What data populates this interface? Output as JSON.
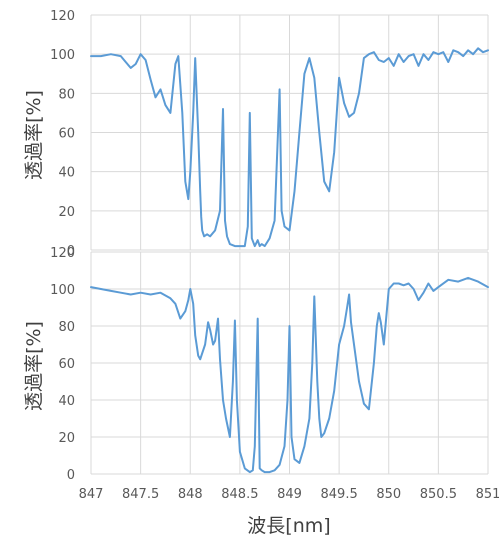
{
  "colors": {
    "series": "#5B9BD5",
    "grid": "#d9d9d9",
    "text": "#595959"
  },
  "chart_data": [
    {
      "type": "line",
      "xlabel": "",
      "ylabel": "透過率[%]",
      "ylim": [
        0,
        120
      ],
      "yticks": [
        "120",
        "100",
        "80",
        "60",
        "40",
        "20",
        "0"
      ],
      "xlim": [
        847,
        851
      ],
      "grid": "vertical and horizontal",
      "series": [
        {
          "x": [
            847.0,
            847.1,
            847.2,
            847.3,
            847.35,
            847.4,
            847.45,
            847.5,
            847.55,
            847.6,
            847.65,
            847.7,
            847.75,
            847.8,
            847.85,
            847.88,
            847.92,
            847.95,
            847.98,
            848.0,
            848.03,
            848.05,
            848.08,
            848.1,
            848.11,
            848.12,
            848.14,
            848.17,
            848.2,
            848.25,
            848.3,
            848.33,
            848.35,
            848.37,
            848.4,
            848.45,
            848.5,
            848.55,
            848.58,
            848.6,
            848.62,
            848.65,
            848.68,
            848.7,
            848.72,
            848.75,
            848.8,
            848.85,
            848.88,
            848.9,
            848.92,
            848.95,
            849.0,
            849.05,
            849.1,
            849.15,
            849.2,
            849.25,
            849.3,
            849.35,
            849.4,
            849.45,
            849.5,
            849.55,
            849.6,
            849.65,
            849.7,
            849.75,
            849.8,
            849.85,
            849.9,
            849.95,
            850.0,
            850.05,
            850.1,
            850.15,
            850.2,
            850.25,
            850.3,
            850.35,
            850.4,
            850.45,
            850.5,
            850.55,
            850.6,
            850.65,
            850.7,
            850.75,
            850.8,
            850.85,
            850.9,
            850.95,
            851.0
          ],
          "y": [
            99,
            99,
            100,
            99,
            96,
            93,
            95,
            100,
            97,
            87,
            78,
            82,
            74,
            70,
            95,
            99,
            70,
            35,
            26,
            40,
            70,
            98,
            60,
            30,
            17,
            10,
            7,
            8,
            7,
            10,
            20,
            72,
            15,
            7,
            3,
            2,
            2,
            2,
            12,
            70,
            6,
            2,
            5,
            2,
            3,
            2,
            6,
            15,
            55,
            82,
            20,
            12,
            10,
            30,
            60,
            90,
            98,
            88,
            60,
            35,
            30,
            50,
            88,
            75,
            68,
            70,
            80,
            98,
            100,
            101,
            97,
            96,
            98,
            94,
            100,
            96,
            99,
            100,
            94,
            100,
            97,
            101,
            100,
            101,
            96,
            102,
            101,
            99,
            102,
            100,
            103,
            101,
            102
          ]
        }
      ]
    },
    {
      "type": "line",
      "xlabel": "波長[nm]",
      "ylabel": "透過率[%]",
      "ylim": [
        0,
        120
      ],
      "yticks": [
        "120",
        "100",
        "80",
        "60",
        "40",
        "20",
        "0"
      ],
      "xlim": [
        847,
        851
      ],
      "xticks": [
        "847",
        "847.5",
        "848",
        "848.5",
        "849",
        "849.5",
        "850",
        "850.5",
        "851"
      ],
      "grid": "vertical and horizontal",
      "series": [
        {
          "x": [
            847.0,
            847.1,
            847.2,
            847.3,
            847.4,
            847.5,
            847.6,
            847.7,
            847.8,
            847.85,
            847.9,
            847.95,
            847.98,
            848.0,
            848.03,
            848.05,
            848.08,
            848.1,
            848.15,
            848.18,
            848.2,
            848.23,
            848.25,
            848.28,
            848.3,
            848.33,
            848.36,
            848.4,
            848.43,
            848.45,
            848.47,
            848.5,
            848.55,
            848.6,
            848.63,
            848.65,
            848.68,
            848.7,
            848.72,
            848.75,
            848.8,
            848.85,
            848.9,
            848.95,
            848.98,
            849.0,
            849.02,
            849.05,
            849.1,
            849.15,
            849.2,
            849.23,
            849.25,
            849.28,
            849.3,
            849.32,
            849.35,
            849.4,
            849.45,
            849.5,
            849.55,
            849.58,
            849.6,
            849.62,
            849.65,
            849.7,
            849.75,
            849.8,
            849.85,
            849.88,
            849.9,
            849.92,
            849.95,
            850.0,
            850.05,
            850.1,
            850.15,
            850.2,
            850.25,
            850.3,
            850.35,
            850.4,
            850.45,
            850.5,
            850.6,
            850.7,
            850.8,
            850.9,
            851.0
          ],
          "y": [
            101,
            100,
            99,
            98,
            97,
            98,
            97,
            98,
            95,
            92,
            84,
            88,
            94,
            100,
            92,
            75,
            64,
            62,
            70,
            82,
            78,
            70,
            72,
            84,
            62,
            40,
            30,
            20,
            50,
            83,
            40,
            12,
            3,
            1,
            2,
            15,
            84,
            3,
            2,
            1,
            1,
            2,
            5,
            15,
            40,
            80,
            20,
            8,
            6,
            15,
            30,
            60,
            96,
            50,
            30,
            20,
            22,
            30,
            45,
            70,
            80,
            90,
            97,
            82,
            70,
            50,
            38,
            35,
            60,
            80,
            87,
            82,
            70,
            100,
            103,
            103,
            102,
            103,
            100,
            94,
            98,
            103,
            99,
            101,
            105,
            104,
            106,
            104,
            101
          ]
        }
      ]
    }
  ]
}
